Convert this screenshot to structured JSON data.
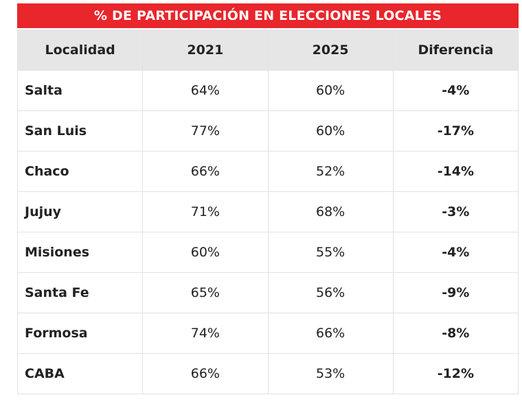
{
  "table": {
    "title": "% DE PARTICIPACIÓN EN ELECCIONES LOCALES",
    "header": [
      "Localidad",
      "2021",
      "2025",
      "Diferencia"
    ],
    "rows": [
      [
        "Salta",
        "64%",
        "60%",
        "-4%"
      ],
      [
        "San Luis",
        "77%",
        "60%",
        "-17%"
      ],
      [
        "Chaco",
        "66%",
        "52%",
        "-14%"
      ],
      [
        "Jujuy",
        "71%",
        "68%",
        "-3%"
      ],
      [
        "Misiones",
        "60%",
        "55%",
        "-4%"
      ],
      [
        "Santa Fe",
        "65%",
        "56%",
        "-9%"
      ],
      [
        "Formosa",
        "74%",
        "66%",
        "-8%"
      ],
      [
        "CABA",
        "66%",
        "53%",
        "-12%"
      ]
    ]
  }
}
